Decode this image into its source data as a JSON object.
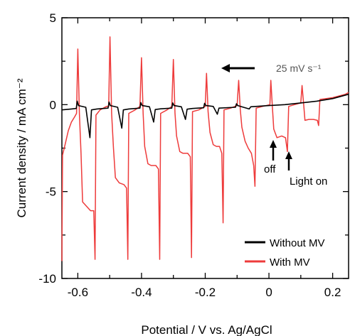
{
  "chart_data": {
    "type": "line",
    "xlabel": "Potential  / V vs. Ag/AgCl",
    "ylabel": "Current density / mA cm⁻²",
    "xlim": [
      -0.65,
      0.25
    ],
    "ylim": [
      -10,
      5
    ],
    "x_ticks": [
      -0.6,
      -0.4,
      -0.2,
      0,
      0.2
    ],
    "x_tick_labels": [
      "-0.6",
      "-0.4",
      "-0.2",
      "0",
      "0.2"
    ],
    "y_ticks": [
      5,
      0,
      -5,
      -10
    ],
    "y_tick_labels": [
      "5",
      "0",
      "-5",
      "-10"
    ],
    "grid": false,
    "legend": "bottom-right",
    "series": [
      {
        "name": "Without MV",
        "color": "#000000",
        "points": [
          [
            -0.65,
            -0.3
          ],
          [
            -0.62,
            -0.25
          ],
          [
            -0.605,
            -0.22
          ],
          [
            -0.602,
            0.2
          ],
          [
            -0.598,
            -0.05
          ],
          [
            -0.575,
            -0.15
          ],
          [
            -0.562,
            -1.9
          ],
          [
            -0.557,
            -0.3
          ],
          [
            -0.54,
            -0.25
          ],
          [
            -0.505,
            -0.2
          ],
          [
            -0.502,
            0.15
          ],
          [
            -0.498,
            -0.05
          ],
          [
            -0.475,
            -0.15
          ],
          [
            -0.462,
            -1.35
          ],
          [
            -0.457,
            -0.3
          ],
          [
            -0.44,
            -0.25
          ],
          [
            -0.405,
            -0.2
          ],
          [
            -0.402,
            0.12
          ],
          [
            -0.398,
            -0.05
          ],
          [
            -0.375,
            -0.12
          ],
          [
            -0.362,
            -1.0
          ],
          [
            -0.357,
            -0.28
          ],
          [
            -0.34,
            -0.24
          ],
          [
            -0.305,
            -0.2
          ],
          [
            -0.302,
            0.1
          ],
          [
            -0.298,
            -0.05
          ],
          [
            -0.275,
            -0.12
          ],
          [
            -0.262,
            -0.85
          ],
          [
            -0.257,
            -0.26
          ],
          [
            -0.24,
            -0.22
          ],
          [
            -0.205,
            -0.18
          ],
          [
            -0.202,
            0.08
          ],
          [
            -0.198,
            -0.05
          ],
          [
            -0.175,
            -0.1
          ],
          [
            -0.162,
            -0.55
          ],
          [
            -0.157,
            -0.2
          ],
          [
            -0.105,
            -0.15
          ],
          [
            -0.102,
            0.05
          ],
          [
            -0.098,
            -0.05
          ],
          [
            -0.062,
            -0.25
          ],
          [
            -0.057,
            -0.12
          ],
          [
            0.0,
            -0.05
          ],
          [
            0.05,
            0.0
          ],
          [
            0.1,
            0.1
          ],
          [
            0.15,
            0.2
          ],
          [
            0.2,
            0.35
          ],
          [
            0.25,
            0.6
          ]
        ]
      },
      {
        "name": "With MV",
        "color": "#ee3b3b",
        "points": [
          [
            -0.65,
            -9.0
          ],
          [
            -0.648,
            -2.9
          ],
          [
            -0.64,
            -2.3
          ],
          [
            -0.63,
            -1.5
          ],
          [
            -0.62,
            -1.0
          ],
          [
            -0.61,
            -0.7
          ],
          [
            -0.604,
            -0.5
          ],
          [
            -0.6,
            3.2
          ],
          [
            -0.595,
            -0.5
          ],
          [
            -0.59,
            -2.8
          ],
          [
            -0.585,
            -5.6
          ],
          [
            -0.575,
            -5.8
          ],
          [
            -0.56,
            -6.1
          ],
          [
            -0.55,
            -6.1
          ],
          [
            -0.546,
            -8.9
          ],
          [
            -0.543,
            -0.6
          ],
          [
            -0.53,
            -0.3
          ],
          [
            -0.51,
            -0.1
          ],
          [
            -0.503,
            -0.1
          ],
          [
            -0.499,
            3.9
          ],
          [
            -0.494,
            -0.5
          ],
          [
            -0.488,
            -2.5
          ],
          [
            -0.482,
            -4.2
          ],
          [
            -0.47,
            -4.5
          ],
          [
            -0.455,
            -4.6
          ],
          [
            -0.447,
            -4.8
          ],
          [
            -0.443,
            -8.9
          ],
          [
            -0.44,
            -0.5
          ],
          [
            -0.42,
            -0.3
          ],
          [
            -0.405,
            -0.1
          ],
          [
            -0.4,
            2.7
          ],
          [
            -0.395,
            -0.5
          ],
          [
            -0.39,
            -2.4
          ],
          [
            -0.38,
            -3.4
          ],
          [
            -0.37,
            -3.5
          ],
          [
            -0.355,
            -3.5
          ],
          [
            -0.347,
            -3.7
          ],
          [
            -0.343,
            -8.9
          ],
          [
            -0.34,
            -0.5
          ],
          [
            -0.32,
            -0.3
          ],
          [
            -0.305,
            -0.1
          ],
          [
            -0.3,
            2.6
          ],
          [
            -0.295,
            -0.5
          ],
          [
            -0.29,
            -1.8
          ],
          [
            -0.28,
            -2.7
          ],
          [
            -0.27,
            -2.8
          ],
          [
            -0.255,
            -2.8
          ],
          [
            -0.247,
            -3.0
          ],
          [
            -0.243,
            -8.8
          ],
          [
            -0.24,
            -0.4
          ],
          [
            -0.22,
            -0.3
          ],
          [
            -0.2,
            -0.1
          ],
          [
            -0.196,
            1.8
          ],
          [
            -0.191,
            -0.4
          ],
          [
            -0.185,
            -1.6
          ],
          [
            -0.175,
            -2.3
          ],
          [
            -0.165,
            -2.4
          ],
          [
            -0.155,
            -2.4
          ],
          [
            -0.148,
            -2.8
          ],
          [
            -0.144,
            -6.8
          ],
          [
            -0.141,
            -0.3
          ],
          [
            -0.12,
            -0.2
          ],
          [
            -0.1,
            -0.05
          ],
          [
            -0.095,
            1.4
          ],
          [
            -0.09,
            -0.3
          ],
          [
            -0.085,
            -1.3
          ],
          [
            -0.075,
            -2.1
          ],
          [
            -0.065,
            -2.5
          ],
          [
            -0.055,
            -2.8
          ],
          [
            -0.048,
            -3.5
          ],
          [
            -0.044,
            -4.7
          ],
          [
            -0.04,
            -0.2
          ],
          [
            -0.02,
            -0.1
          ],
          [
            0.003,
            0.0
          ],
          [
            0.006,
            1.4
          ],
          [
            0.011,
            -0.2
          ],
          [
            0.015,
            -1.4
          ],
          [
            0.025,
            -1.9
          ],
          [
            0.04,
            -1.8
          ],
          [
            0.052,
            -1.9
          ],
          [
            0.058,
            -2.7
          ],
          [
            0.062,
            -0.1
          ],
          [
            0.08,
            0.0
          ],
          [
            0.1,
            0.1
          ],
          [
            0.104,
            1.1
          ],
          [
            0.109,
            0.0
          ],
          [
            0.113,
            -0.9
          ],
          [
            0.125,
            -0.85
          ],
          [
            0.14,
            -0.85
          ],
          [
            0.152,
            -0.9
          ],
          [
            0.156,
            -1.2
          ],
          [
            0.16,
            0.3
          ],
          [
            0.18,
            0.35
          ],
          [
            0.2,
            0.4
          ],
          [
            0.22,
            0.5
          ],
          [
            0.24,
            0.6
          ],
          [
            0.25,
            0.7
          ]
        ]
      }
    ],
    "annotations": {
      "scan_rate": "25 mV s⁻¹",
      "off_label": "off",
      "on_label": "Light on"
    }
  }
}
